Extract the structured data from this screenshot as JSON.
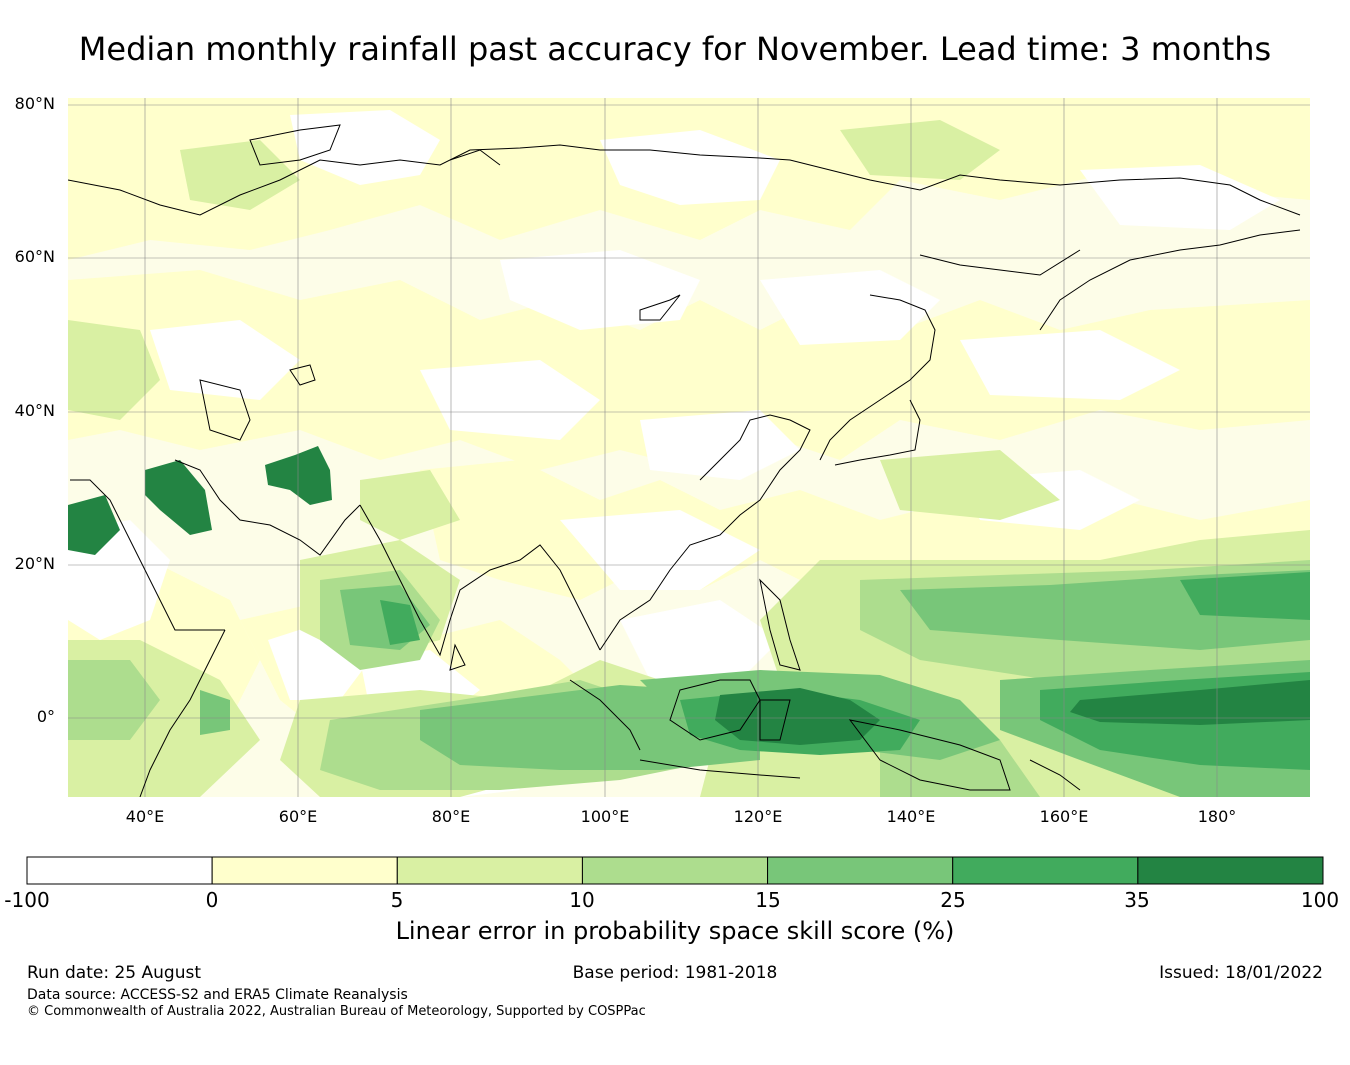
{
  "title": "Median monthly rainfall past accuracy for November. Lead time: 3 months",
  "map": {
    "lat_labels": [
      "80°N",
      "60°N",
      "40°N",
      "20°N",
      "0°"
    ],
    "lon_labels": [
      "40°E",
      "60°E",
      "80°E",
      "100°E",
      "120°E",
      "140°E",
      "160°E",
      "180°"
    ],
    "lon_range": [
      30,
      192
    ],
    "lat_range": [
      -10,
      81
    ]
  },
  "colorbar": {
    "ticks": [
      "-100",
      "0",
      "5",
      "10",
      "15",
      "25",
      "35",
      "100"
    ],
    "colors": [
      "#ffffff",
      "#ffffcc",
      "#d9f0a3",
      "#addd8e",
      "#78c679",
      "#41ab5d",
      "#238443"
    ],
    "label": "Linear error in probability space skill score (%)"
  },
  "footer": {
    "run_date": "Run date: 25 August",
    "base_period": "Base period: 1981-2018",
    "issued": "Issued: 18/01/2022",
    "data_source": "Data source: ACCESS-S2 and ERA5 Climate Reanalysis",
    "copyright": "© Commonwealth of Australia 2022, Australian Bureau of Meteorology, Supported by COSPPac"
  }
}
